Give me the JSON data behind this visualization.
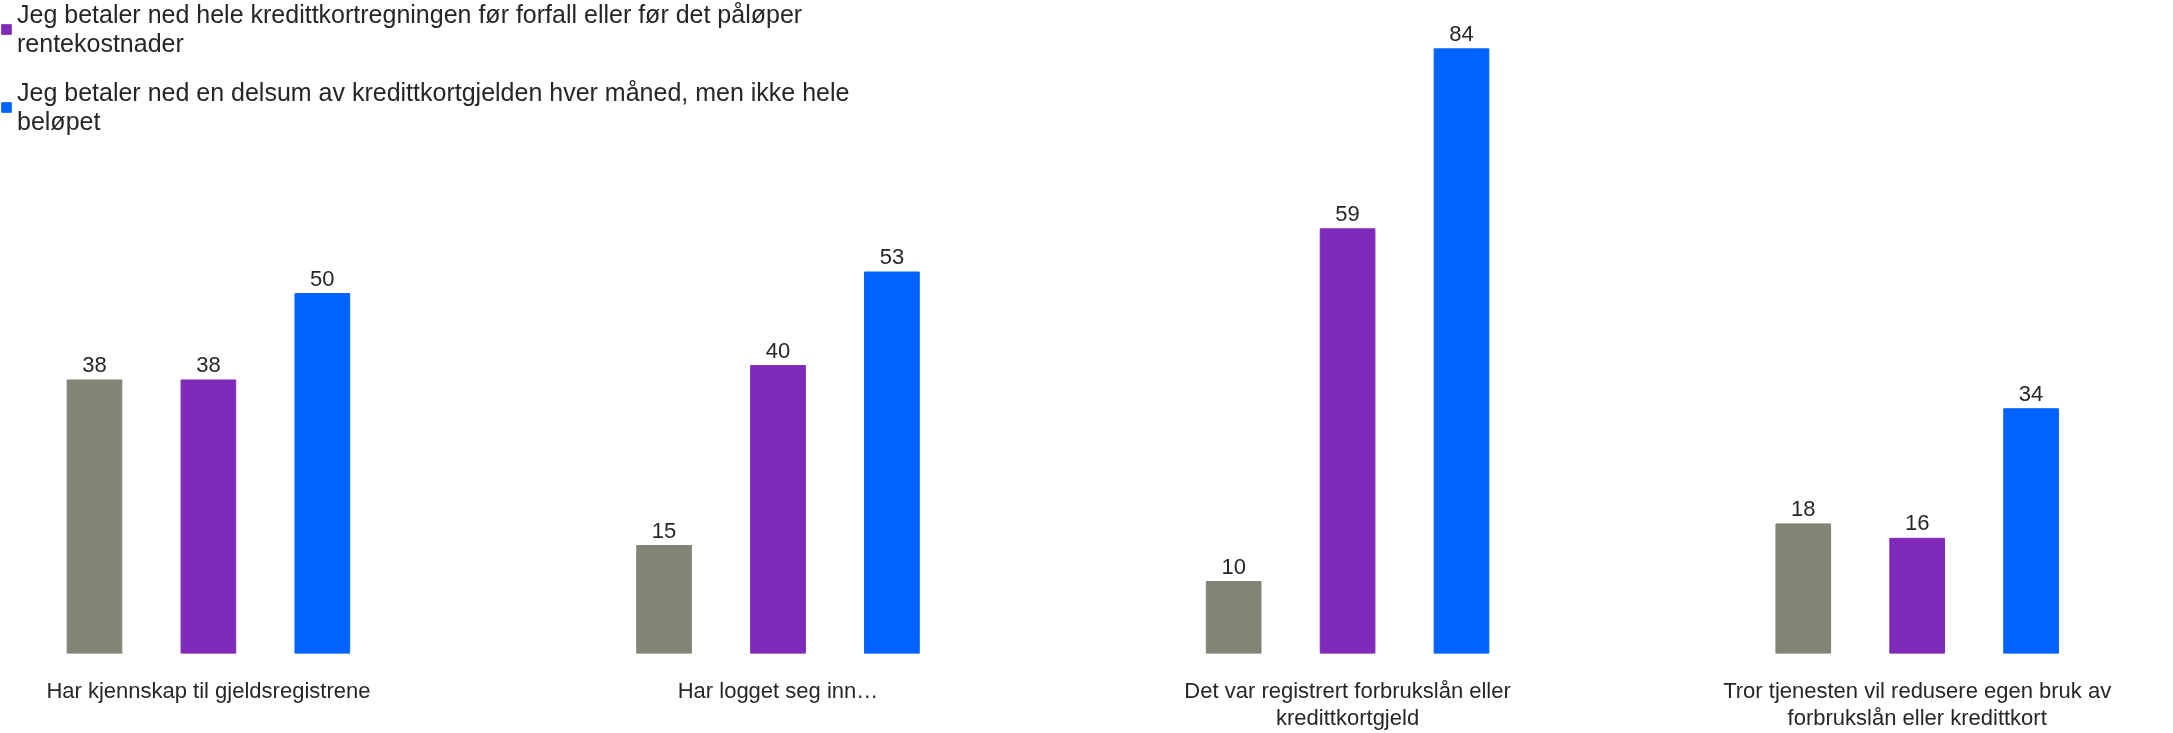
{
  "chart_data": {
    "type": "bar",
    "categories": [
      "Har kjennskap til gjeldsregistrene",
      "Har logget seg inn…",
      "Det var registrert forbrukslån eller kredittkortgjeld",
      "Tror tjenesten vil redusere egen bruk av forbrukslån eller kredittkort"
    ],
    "series": [
      {
        "color": "#838376",
        "values": [
          38,
          15,
          10,
          18
        ]
      },
      {
        "name": "Jeg betaler ned hele kredittkortregningen før forfall eller før det påløper rentekostnader",
        "color": "#7f2ab8",
        "values": [
          38,
          40,
          59,
          16
        ]
      },
      {
        "name": "Jeg betaler ned en delsum av kredittkortgjelden hver måned, men ikke hele beløpet",
        "color": "#0062ff",
        "values": [
          50,
          53,
          84,
          34
        ]
      }
    ],
    "data_labels": true,
    "legend": "top left",
    "grid": false
  }
}
